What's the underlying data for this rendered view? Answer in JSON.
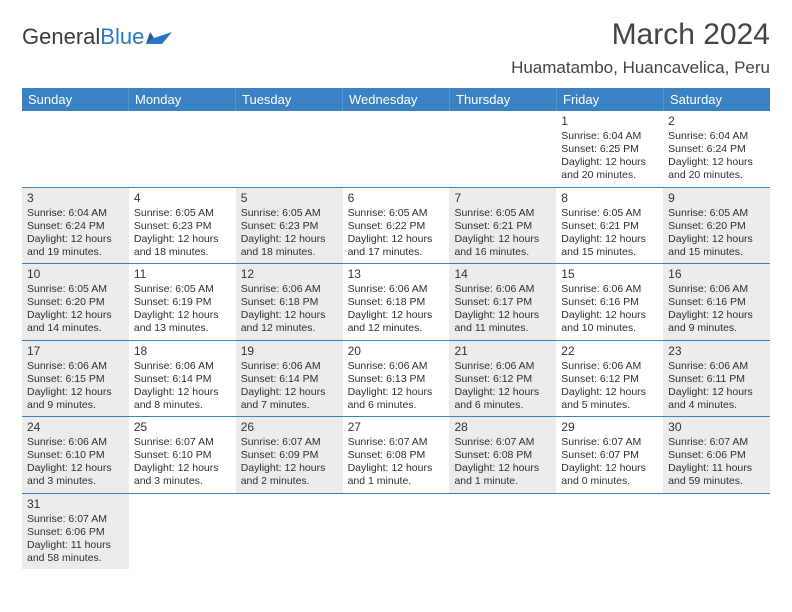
{
  "logo": {
    "text1": "General",
    "text2": "Blue"
  },
  "title": "March 2024",
  "location": "Huamatambo, Huancavelica, Peru",
  "colors": {
    "header_bg": "#3b82c4",
    "header_text": "#ffffff",
    "shade_bg": "#ececec",
    "text": "#2f2f2f",
    "rule": "#3b82c4"
  },
  "dow": [
    "Sunday",
    "Monday",
    "Tuesday",
    "Wednesday",
    "Thursday",
    "Friday",
    "Saturday"
  ],
  "weeks": [
    [
      {
        "n": "",
        "d": "",
        "s": false
      },
      {
        "n": "",
        "d": "",
        "s": false
      },
      {
        "n": "",
        "d": "",
        "s": false
      },
      {
        "n": "",
        "d": "",
        "s": false
      },
      {
        "n": "",
        "d": "",
        "s": false
      },
      {
        "n": "1",
        "d": "Sunrise: 6:04 AM\nSunset: 6:25 PM\nDaylight: 12 hours\nand 20 minutes.",
        "s": false
      },
      {
        "n": "2",
        "d": "Sunrise: 6:04 AM\nSunset: 6:24 PM\nDaylight: 12 hours\nand 20 minutes.",
        "s": false
      }
    ],
    [
      {
        "n": "3",
        "d": "Sunrise: 6:04 AM\nSunset: 6:24 PM\nDaylight: 12 hours\nand 19 minutes.",
        "s": true
      },
      {
        "n": "4",
        "d": "Sunrise: 6:05 AM\nSunset: 6:23 PM\nDaylight: 12 hours\nand 18 minutes.",
        "s": false
      },
      {
        "n": "5",
        "d": "Sunrise: 6:05 AM\nSunset: 6:23 PM\nDaylight: 12 hours\nand 18 minutes.",
        "s": true
      },
      {
        "n": "6",
        "d": "Sunrise: 6:05 AM\nSunset: 6:22 PM\nDaylight: 12 hours\nand 17 minutes.",
        "s": false
      },
      {
        "n": "7",
        "d": "Sunrise: 6:05 AM\nSunset: 6:21 PM\nDaylight: 12 hours\nand 16 minutes.",
        "s": true
      },
      {
        "n": "8",
        "d": "Sunrise: 6:05 AM\nSunset: 6:21 PM\nDaylight: 12 hours\nand 15 minutes.",
        "s": false
      },
      {
        "n": "9",
        "d": "Sunrise: 6:05 AM\nSunset: 6:20 PM\nDaylight: 12 hours\nand 15 minutes.",
        "s": true
      }
    ],
    [
      {
        "n": "10",
        "d": "Sunrise: 6:05 AM\nSunset: 6:20 PM\nDaylight: 12 hours\nand 14 minutes.",
        "s": true
      },
      {
        "n": "11",
        "d": "Sunrise: 6:05 AM\nSunset: 6:19 PM\nDaylight: 12 hours\nand 13 minutes.",
        "s": false
      },
      {
        "n": "12",
        "d": "Sunrise: 6:06 AM\nSunset: 6:18 PM\nDaylight: 12 hours\nand 12 minutes.",
        "s": true
      },
      {
        "n": "13",
        "d": "Sunrise: 6:06 AM\nSunset: 6:18 PM\nDaylight: 12 hours\nand 12 minutes.",
        "s": false
      },
      {
        "n": "14",
        "d": "Sunrise: 6:06 AM\nSunset: 6:17 PM\nDaylight: 12 hours\nand 11 minutes.",
        "s": true
      },
      {
        "n": "15",
        "d": "Sunrise: 6:06 AM\nSunset: 6:16 PM\nDaylight: 12 hours\nand 10 minutes.",
        "s": false
      },
      {
        "n": "16",
        "d": "Sunrise: 6:06 AM\nSunset: 6:16 PM\nDaylight: 12 hours\nand 9 minutes.",
        "s": true
      }
    ],
    [
      {
        "n": "17",
        "d": "Sunrise: 6:06 AM\nSunset: 6:15 PM\nDaylight: 12 hours\nand 9 minutes.",
        "s": true
      },
      {
        "n": "18",
        "d": "Sunrise: 6:06 AM\nSunset: 6:14 PM\nDaylight: 12 hours\nand 8 minutes.",
        "s": false
      },
      {
        "n": "19",
        "d": "Sunrise: 6:06 AM\nSunset: 6:14 PM\nDaylight: 12 hours\nand 7 minutes.",
        "s": true
      },
      {
        "n": "20",
        "d": "Sunrise: 6:06 AM\nSunset: 6:13 PM\nDaylight: 12 hours\nand 6 minutes.",
        "s": false
      },
      {
        "n": "21",
        "d": "Sunrise: 6:06 AM\nSunset: 6:12 PM\nDaylight: 12 hours\nand 6 minutes.",
        "s": true
      },
      {
        "n": "22",
        "d": "Sunrise: 6:06 AM\nSunset: 6:12 PM\nDaylight: 12 hours\nand 5 minutes.",
        "s": false
      },
      {
        "n": "23",
        "d": "Sunrise: 6:06 AM\nSunset: 6:11 PM\nDaylight: 12 hours\nand 4 minutes.",
        "s": true
      }
    ],
    [
      {
        "n": "24",
        "d": "Sunrise: 6:06 AM\nSunset: 6:10 PM\nDaylight: 12 hours\nand 3 minutes.",
        "s": true
      },
      {
        "n": "25",
        "d": "Sunrise: 6:07 AM\nSunset: 6:10 PM\nDaylight: 12 hours\nand 3 minutes.",
        "s": false
      },
      {
        "n": "26",
        "d": "Sunrise: 6:07 AM\nSunset: 6:09 PM\nDaylight: 12 hours\nand 2 minutes.",
        "s": true
      },
      {
        "n": "27",
        "d": "Sunrise: 6:07 AM\nSunset: 6:08 PM\nDaylight: 12 hours\nand 1 minute.",
        "s": false
      },
      {
        "n": "28",
        "d": "Sunrise: 6:07 AM\nSunset: 6:08 PM\nDaylight: 12 hours\nand 1 minute.",
        "s": true
      },
      {
        "n": "29",
        "d": "Sunrise: 6:07 AM\nSunset: 6:07 PM\nDaylight: 12 hours\nand 0 minutes.",
        "s": false
      },
      {
        "n": "30",
        "d": "Sunrise: 6:07 AM\nSunset: 6:06 PM\nDaylight: 11 hours\nand 59 minutes.",
        "s": true
      }
    ],
    [
      {
        "n": "31",
        "d": "Sunrise: 6:07 AM\nSunset: 6:06 PM\nDaylight: 11 hours\nand 58 minutes.",
        "s": true
      },
      {
        "n": "",
        "d": "",
        "s": false
      },
      {
        "n": "",
        "d": "",
        "s": false
      },
      {
        "n": "",
        "d": "",
        "s": false
      },
      {
        "n": "",
        "d": "",
        "s": false
      },
      {
        "n": "",
        "d": "",
        "s": false
      },
      {
        "n": "",
        "d": "",
        "s": false
      }
    ]
  ]
}
